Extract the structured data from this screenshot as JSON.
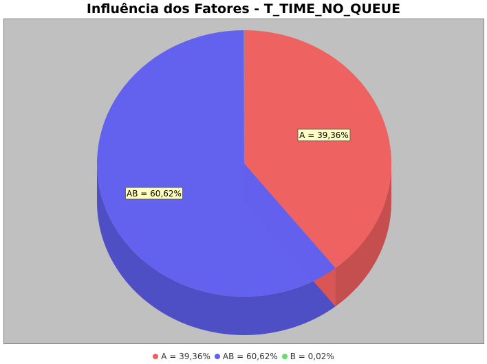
{
  "chart_data": {
    "type": "pie",
    "title": "Influência dos Fatores - T_TIME_NO_QUEUE",
    "slices": [
      {
        "name": "A",
        "value": 39.36,
        "label": "A = 39,36%",
        "color": "#f06060"
      },
      {
        "name": "AB",
        "value": 60.62,
        "label": "AB = 60,62%",
        "color": "#6060f0"
      },
      {
        "name": "B",
        "value": 0.02,
        "label": "B = 0,02%",
        "color": "#60e060"
      }
    ],
    "style": "3d",
    "plot_background": "#c0c0c0",
    "legend_position": "bottom"
  }
}
